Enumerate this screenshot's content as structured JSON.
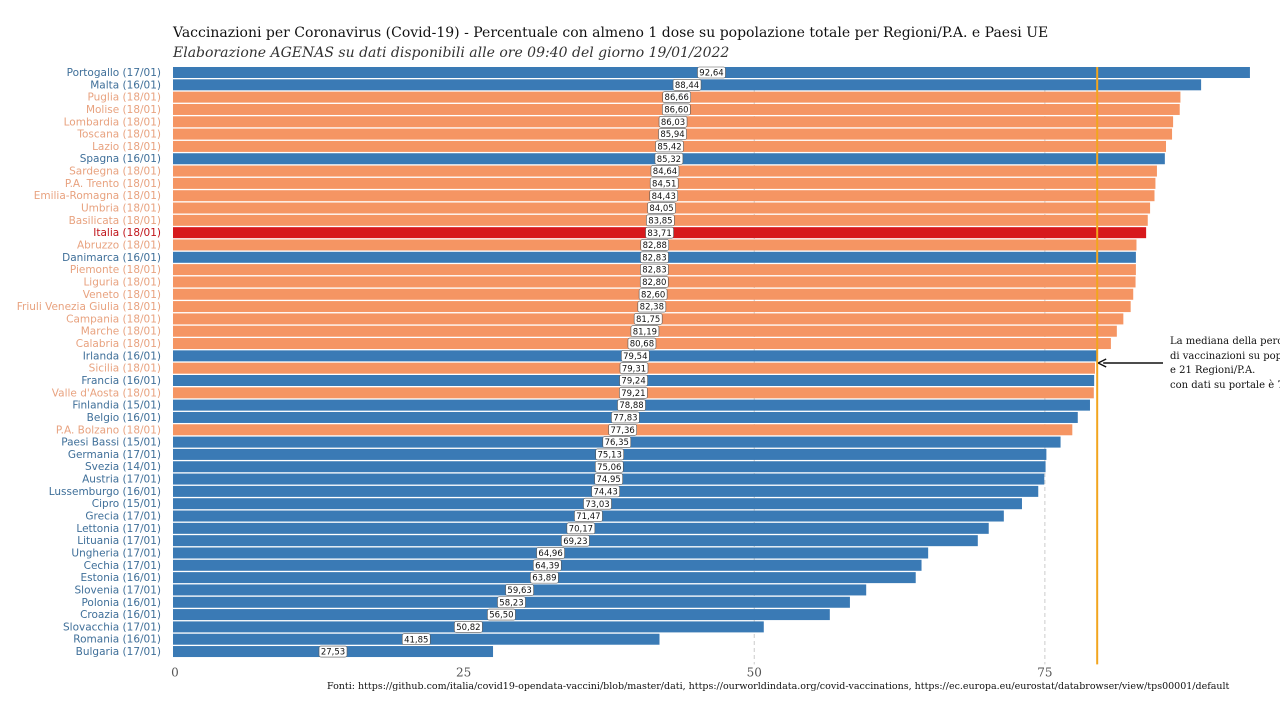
{
  "chart_data": {
    "type": "bar",
    "orientation": "horizontal",
    "title": "Vaccinazioni per Coronavirus (Covid-19) - Percentuale con almeno 1 dose su popolazione totale per Regioni/P.A. e Paesi UE",
    "subtitle": "Elaborazione AGENAS su dati disponibili alle ore 09:40  del giorno  19/01/2022",
    "xlabel": "",
    "ylabel": "",
    "xlim": [
      0,
      95
    ],
    "xticks": [
      0,
      25,
      50,
      75
    ],
    "xtick_labels": [
      "0",
      "25",
      "50",
      "75"
    ],
    "gridlines_x": [
      50,
      75
    ],
    "grid_style": "dashed",
    "group_colors": {
      "eu": "#3a7ab5",
      "region": "#f59563",
      "italia": "#d7191c"
    },
    "label_colors": {
      "eu": "#3f6f99",
      "region": "#e8a27f",
      "italia": "#c0141a"
    },
    "median_line": {
      "value": 79.5,
      "color": "#f2a51f"
    },
    "items": [
      {
        "label": "Portogallo (17/01)",
        "value": 92.64,
        "value_label": "92,64",
        "group": "eu"
      },
      {
        "label": "Malta (16/01)",
        "value": 88.44,
        "value_label": "88,44",
        "group": "eu"
      },
      {
        "label": "Puglia (18/01)",
        "value": 86.66,
        "value_label": "86,66",
        "group": "region"
      },
      {
        "label": "Molise (18/01)",
        "value": 86.6,
        "value_label": "86,60",
        "group": "region"
      },
      {
        "label": "Lombardia (18/01)",
        "value": 86.03,
        "value_label": "86,03",
        "group": "region"
      },
      {
        "label": "Toscana (18/01)",
        "value": 85.94,
        "value_label": "85,94",
        "group": "region"
      },
      {
        "label": "Lazio (18/01)",
        "value": 85.42,
        "value_label": "85,42",
        "group": "region"
      },
      {
        "label": "Spagna (16/01)",
        "value": 85.32,
        "value_label": "85,32",
        "group": "eu"
      },
      {
        "label": "Sardegna (18/01)",
        "value": 84.64,
        "value_label": "84,64",
        "group": "region"
      },
      {
        "label": "P.A. Trento (18/01)",
        "value": 84.51,
        "value_label": "84,51",
        "group": "region"
      },
      {
        "label": "Emilia-Romagna (18/01)",
        "value": 84.43,
        "value_label": "84,43",
        "group": "region"
      },
      {
        "label": "Umbria (18/01)",
        "value": 84.05,
        "value_label": "84,05",
        "group": "region"
      },
      {
        "label": "Basilicata (18/01)",
        "value": 83.85,
        "value_label": "83,85",
        "group": "region"
      },
      {
        "label": "Italia (18/01)",
        "value": 83.71,
        "value_label": "83,71",
        "group": "italia"
      },
      {
        "label": "Abruzzo (18/01)",
        "value": 82.88,
        "value_label": "82,88",
        "group": "region"
      },
      {
        "label": "Danimarca (16/01)",
        "value": 82.83,
        "value_label": "82,83",
        "group": "eu"
      },
      {
        "label": "Piemonte (18/01)",
        "value": 82.83,
        "value_label": "82,83",
        "group": "region"
      },
      {
        "label": "Liguria (18/01)",
        "value": 82.8,
        "value_label": "82,80",
        "group": "region"
      },
      {
        "label": "Veneto (18/01)",
        "value": 82.6,
        "value_label": "82,60",
        "group": "region"
      },
      {
        "label": "Friuli Venezia Giulia (18/01)",
        "value": 82.38,
        "value_label": "82,38",
        "group": "region"
      },
      {
        "label": "Campania (18/01)",
        "value": 81.75,
        "value_label": "81,75",
        "group": "region"
      },
      {
        "label": "Marche (18/01)",
        "value": 81.19,
        "value_label": "81,19",
        "group": "region"
      },
      {
        "label": "Calabria (18/01)",
        "value": 80.68,
        "value_label": "80,68",
        "group": "region"
      },
      {
        "label": "Irlanda (16/01)",
        "value": 79.54,
        "value_label": "79,54",
        "group": "eu"
      },
      {
        "label": "Sicilia (18/01)",
        "value": 79.31,
        "value_label": "79,31",
        "group": "region"
      },
      {
        "label": "Francia (16/01)",
        "value": 79.24,
        "value_label": "79,24",
        "group": "eu"
      },
      {
        "label": "Valle d'Aosta (18/01)",
        "value": 79.21,
        "value_label": "79,21",
        "group": "region"
      },
      {
        "label": "Finlandia (15/01)",
        "value": 78.88,
        "value_label": "78,88",
        "group": "eu"
      },
      {
        "label": "Belgio (16/01)",
        "value": 77.83,
        "value_label": "77,83",
        "group": "eu"
      },
      {
        "label": "P.A. Bolzano (18/01)",
        "value": 77.36,
        "value_label": "77,36",
        "group": "region"
      },
      {
        "label": "Paesi Bassi (15/01)",
        "value": 76.35,
        "value_label": "76,35",
        "group": "eu"
      },
      {
        "label": "Germania (17/01)",
        "value": 75.13,
        "value_label": "75,13",
        "group": "eu"
      },
      {
        "label": "Svezia (14/01)",
        "value": 75.06,
        "value_label": "75,06",
        "group": "eu"
      },
      {
        "label": "Austria (17/01)",
        "value": 74.95,
        "value_label": "74,95",
        "group": "eu"
      },
      {
        "label": "Lussemburgo (16/01)",
        "value": 74.43,
        "value_label": "74,43",
        "group": "eu"
      },
      {
        "label": "Cipro (15/01)",
        "value": 73.03,
        "value_label": "73,03",
        "group": "eu"
      },
      {
        "label": "Grecia (17/01)",
        "value": 71.47,
        "value_label": "71,47",
        "group": "eu"
      },
      {
        "label": "Lettonia (17/01)",
        "value": 70.17,
        "value_label": "70,17",
        "group": "eu"
      },
      {
        "label": "Lituania (17/01)",
        "value": 69.23,
        "value_label": "69,23",
        "group": "eu"
      },
      {
        "label": "Ungheria (17/01)",
        "value": 64.96,
        "value_label": "64,96",
        "group": "eu"
      },
      {
        "label": "Cechia (17/01)",
        "value": 64.39,
        "value_label": "64,39",
        "group": "eu"
      },
      {
        "label": "Estonia (16/01)",
        "value": 63.89,
        "value_label": "63,89",
        "group": "eu"
      },
      {
        "label": "Slovenia (17/01)",
        "value": 59.63,
        "value_label": "59,63",
        "group": "eu"
      },
      {
        "label": "Polonia (16/01)",
        "value": 58.23,
        "value_label": "58,23",
        "group": "eu"
      },
      {
        "label": "Croazia (16/01)",
        "value": 56.5,
        "value_label": "56,50",
        "group": "eu"
      },
      {
        "label": "Slovacchia (17/01)",
        "value": 50.82,
        "value_label": "50,82",
        "group": "eu"
      },
      {
        "label": "Romania (16/01)",
        "value": 41.85,
        "value_label": "41,85",
        "group": "eu"
      },
      {
        "label": "Bulgaria (17/01)",
        "value": 27.53,
        "value_label": "27,53",
        "group": "eu"
      }
    ],
    "annotation": {
      "lines": [
        "La mediana della perc",
        "di vaccinazioni su pop",
        "e 21 Regioni/P.A.",
        "con dati su portale è 7"
      ]
    },
    "footer": "Fonti: https://github.com/italia/covid19-opendata-vaccini/blob/master/dati, https://ourworldindata.org/covid-vaccinations, https://ec.europa.eu/eurostat/databrowser/view/tps00001/default"
  }
}
